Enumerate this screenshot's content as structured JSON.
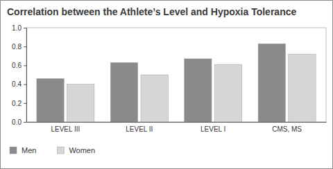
{
  "chart_data": {
    "type": "bar",
    "title": "Correlation between the Athlete’s Level and Hypoxia Tolerance",
    "categories": [
      "LEVEL III",
      "LEVEL II",
      "LEVEL I",
      "CMS, MS"
    ],
    "series": [
      {
        "name": "Men",
        "color": "#8a8a8a",
        "values": [
          0.46,
          0.63,
          0.67,
          0.83
        ]
      },
      {
        "name": "Women",
        "color": "#d6d6d6",
        "values": [
          0.4,
          0.5,
          0.61,
          0.72
        ]
      }
    ],
    "ylim": [
      0,
      1
    ],
    "yticks": [
      {
        "value": 0,
        "label": "0.0"
      },
      0.2,
      0.4,
      0.6,
      0.8,
      {
        "value": 1,
        "label": "1.0"
      }
    ],
    "grid": false,
    "legend": "bottom-left"
  }
}
